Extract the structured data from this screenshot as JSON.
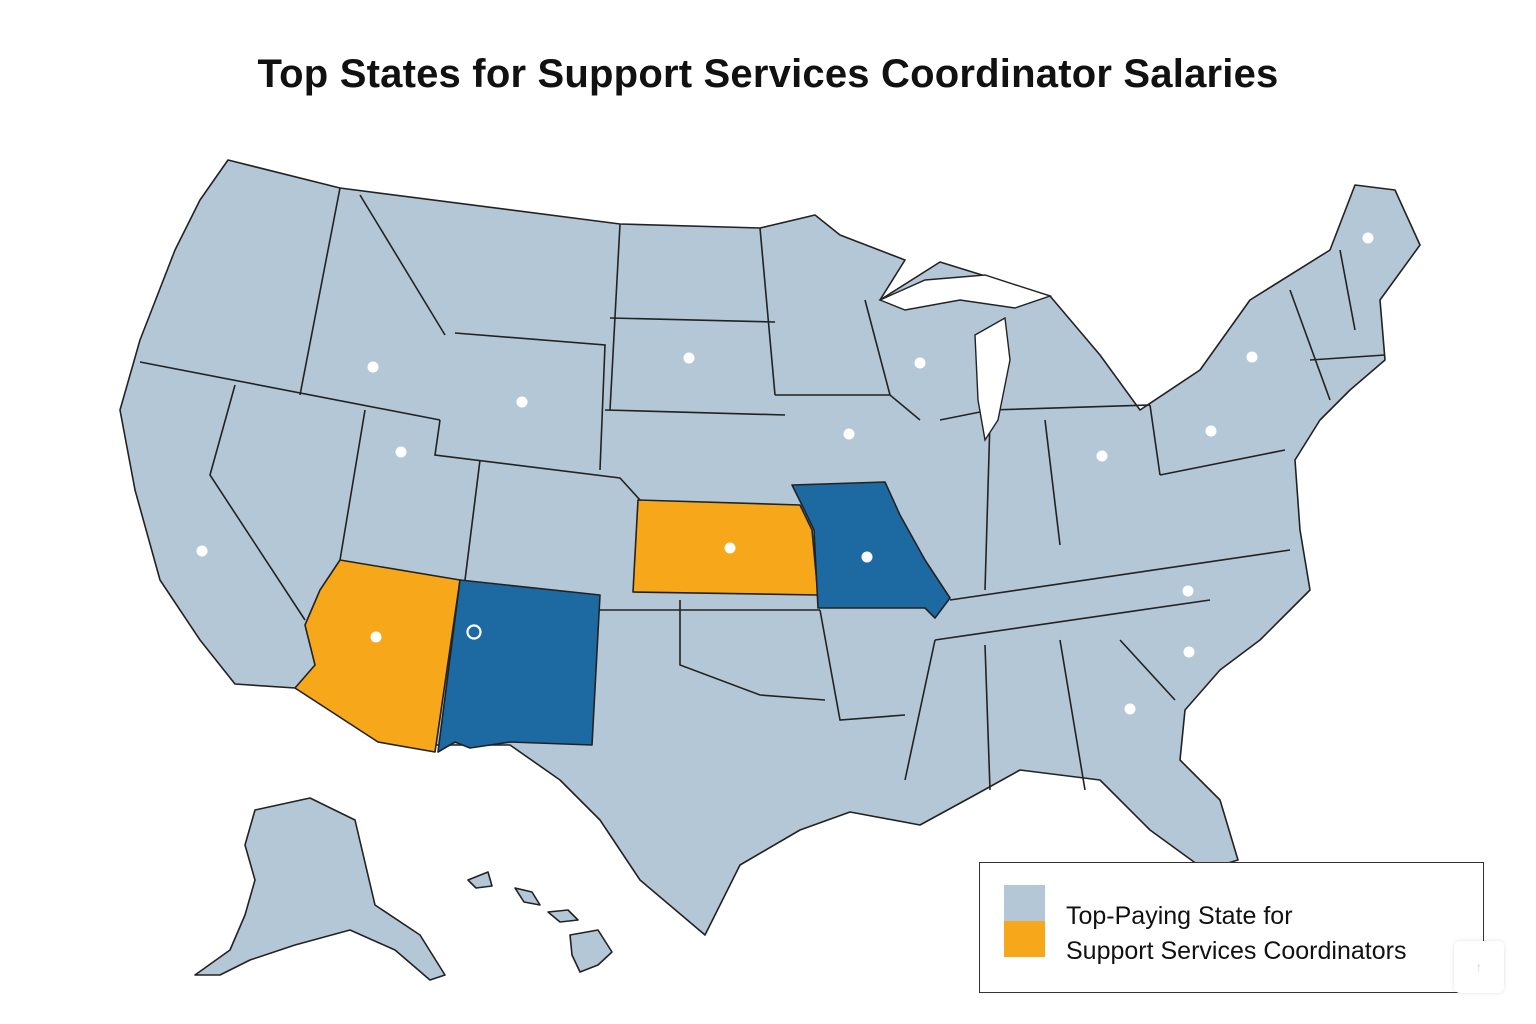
{
  "title": "Top States for Support Services Coordinator Salaries",
  "colors": {
    "default_state": "#b4c7d6",
    "highlight_orange": "#f6a81a",
    "highlight_blue": "#1d6aa2",
    "border": "#222222",
    "marker": "#ffffff"
  },
  "highlighted_states": {
    "orange": [
      "Arizona",
      "Kansas"
    ],
    "blue": [
      "New Mexico",
      "Missouri"
    ]
  },
  "marked_states": [
    "Idaho",
    "Wyoming",
    "Utah",
    "California",
    "South Dakota",
    "Iowa",
    "Wisconsin",
    "Ohio",
    "Pennsylvania",
    "New York",
    "Maine",
    "Kansas",
    "Missouri",
    "Arizona",
    "New Mexico",
    "North Carolina",
    "South Carolina",
    "Georgia"
  ],
  "legend": {
    "swatch_colors": [
      "#b4c7d6",
      "#f6a81a"
    ],
    "label_line1": "Top-Paying State for",
    "label_line2": "Support Services Coordinators"
  },
  "corner_button": {
    "icon": "arrow-up-icon"
  }
}
